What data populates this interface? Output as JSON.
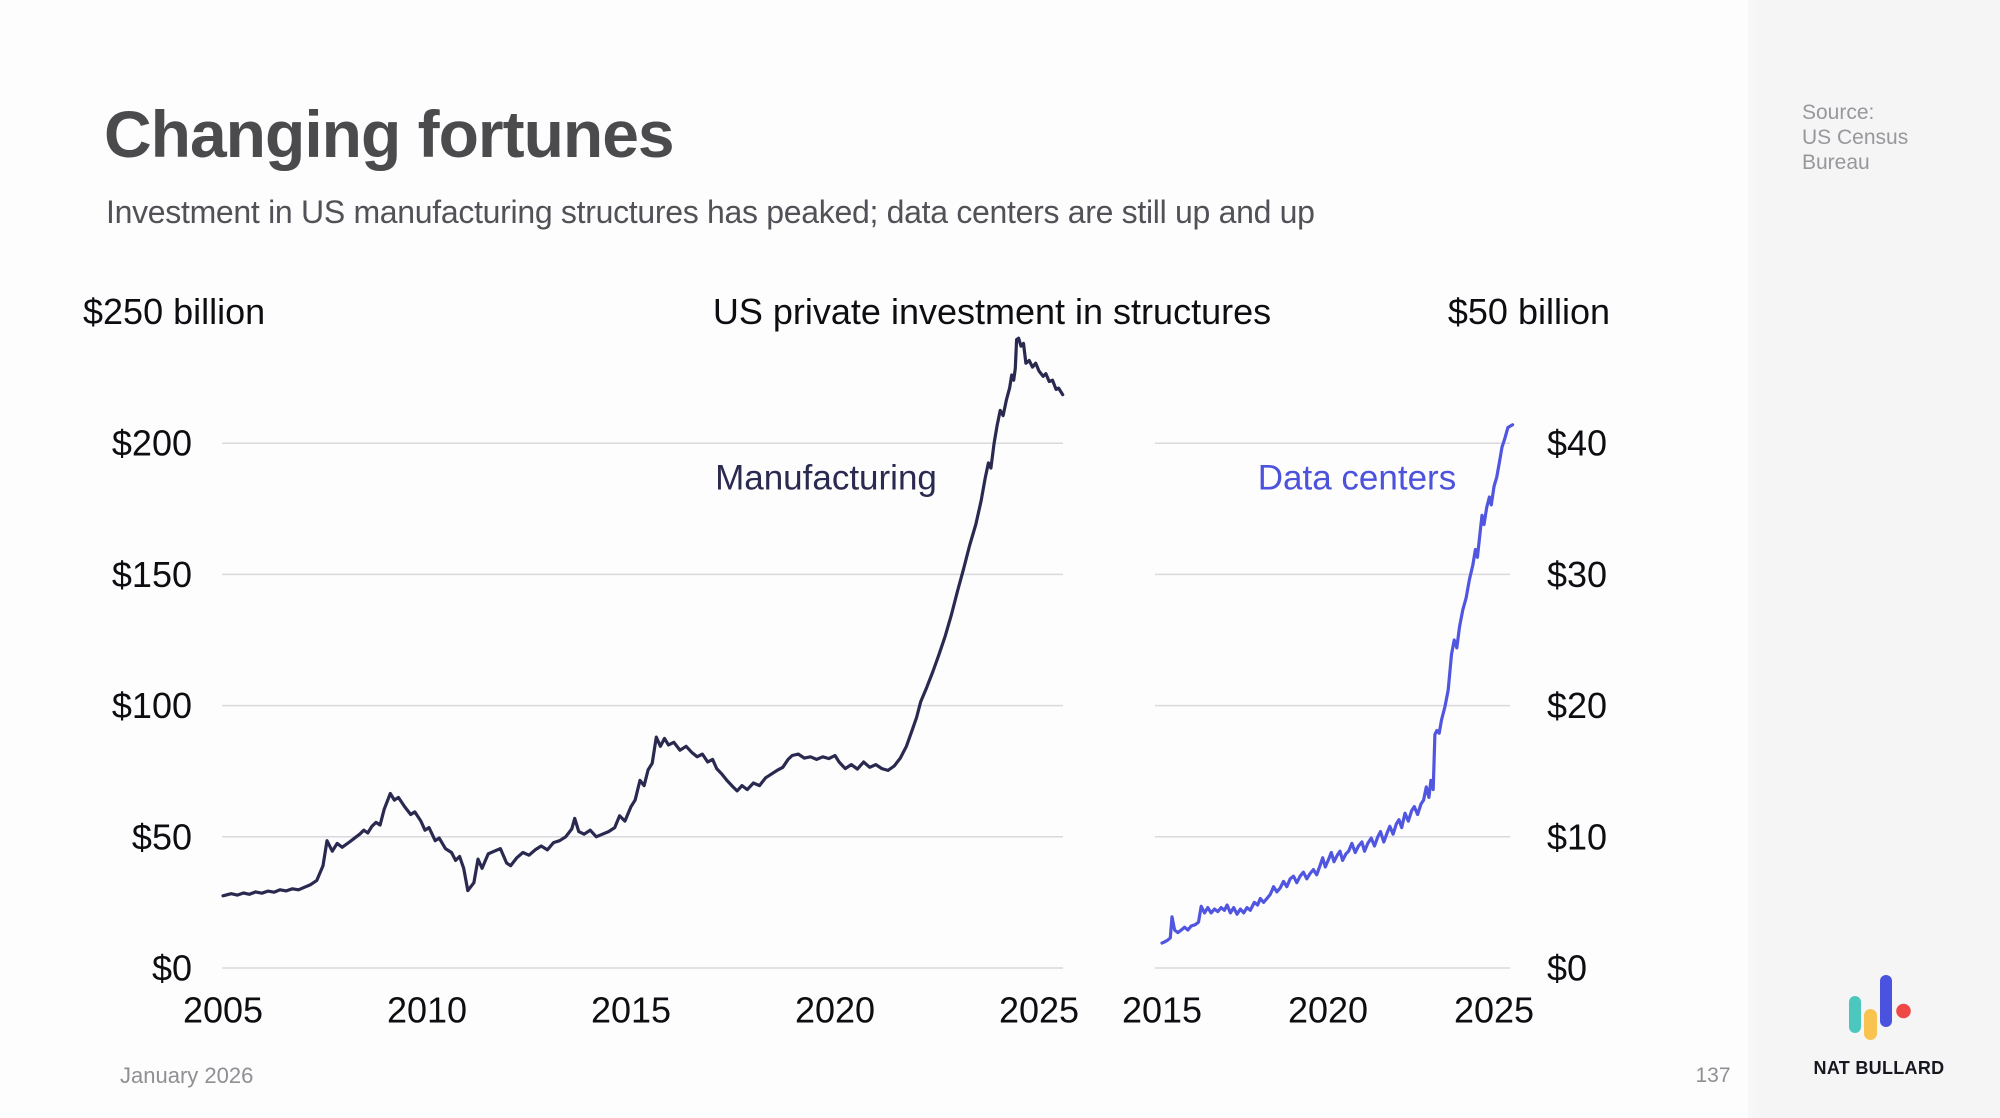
{
  "header": {
    "title": "Changing fortunes",
    "subtitle": "Investment in US manufacturing structures has peaked; data centers are still up and up"
  },
  "chart_header": {
    "title": "US private investment in structures"
  },
  "footer": {
    "date": "January 2026",
    "page_number": "137"
  },
  "sidebar": {
    "source_lines": [
      "Source:",
      "US Census",
      "Bureau"
    ],
    "brand": "NAT BULLARD",
    "logo": {
      "teal": "#4bc7be",
      "yellow": "#f9c350",
      "indigo": "#4a52e0",
      "red": "#ee4946"
    }
  },
  "colors": {
    "grid": "#d9d9de",
    "axis_text": "#0e0e12",
    "manufacturing_line": "#2a2950",
    "data_centers_line": "#5056e0"
  },
  "chart_data": [
    {
      "type": "line",
      "name": "manufacturing",
      "label": "Manufacturing",
      "label_color": "#2a2950",
      "color": "#2a2950",
      "axis_top_label": "$250 billion",
      "units": "billion USD",
      "xlim": [
        2005,
        2025.6
      ],
      "ylim": [
        0,
        250
      ],
      "grid": true,
      "x_ticks": [
        {
          "value": 2005,
          "label": "2005"
        },
        {
          "value": 2010,
          "label": "2010"
        },
        {
          "value": 2015,
          "label": "2015"
        },
        {
          "value": 2020,
          "label": "2020"
        },
        {
          "value": 2025,
          "label": "2025"
        }
      ],
      "y_gridlines": [
        {
          "value": 200,
          "label": "$200"
        },
        {
          "value": 150,
          "label": "$150"
        },
        {
          "value": 100,
          "label": "$100"
        },
        {
          "value": 50,
          "label": "$50"
        },
        {
          "value": 0,
          "label": "$0"
        }
      ],
      "points": [
        [
          2005.0,
          27.5
        ],
        [
          2005.2,
          28.3
        ],
        [
          2005.35,
          27.8
        ],
        [
          2005.5,
          28.6
        ],
        [
          2005.65,
          28.1
        ],
        [
          2005.8,
          29.0
        ],
        [
          2005.95,
          28.5
        ],
        [
          2006.1,
          29.3
        ],
        [
          2006.25,
          28.9
        ],
        [
          2006.4,
          29.8
        ],
        [
          2006.55,
          29.4
        ],
        [
          2006.7,
          30.2
        ],
        [
          2006.85,
          29.8
        ],
        [
          2007.0,
          30.8
        ],
        [
          2007.15,
          31.8
        ],
        [
          2007.3,
          33.4
        ],
        [
          2007.45,
          39.0
        ],
        [
          2007.55,
          48.5
        ],
        [
          2007.68,
          44.5
        ],
        [
          2007.8,
          47.5
        ],
        [
          2007.92,
          46.0
        ],
        [
          2008.1,
          48.0
        ],
        [
          2008.25,
          49.8
        ],
        [
          2008.35,
          51.0
        ],
        [
          2008.45,
          52.5
        ],
        [
          2008.55,
          51.5
        ],
        [
          2008.65,
          54.0
        ],
        [
          2008.75,
          55.5
        ],
        [
          2008.85,
          54.5
        ],
        [
          2008.95,
          60.5
        ],
        [
          2009.1,
          66.5
        ],
        [
          2009.2,
          64.0
        ],
        [
          2009.3,
          65.0
        ],
        [
          2009.45,
          61.5
        ],
        [
          2009.6,
          58.5
        ],
        [
          2009.7,
          59.5
        ],
        [
          2009.85,
          56.0
        ],
        [
          2009.95,
          52.5
        ],
        [
          2010.05,
          53.5
        ],
        [
          2010.2,
          48.5
        ],
        [
          2010.3,
          49.5
        ],
        [
          2010.45,
          45.5
        ],
        [
          2010.6,
          44.0
        ],
        [
          2010.7,
          41.0
        ],
        [
          2010.8,
          42.5
        ],
        [
          2010.9,
          38.0
        ],
        [
          2011.0,
          29.5
        ],
        [
          2011.15,
          32.5
        ],
        [
          2011.25,
          41.5
        ],
        [
          2011.35,
          38.0
        ],
        [
          2011.5,
          43.5
        ],
        [
          2011.65,
          44.5
        ],
        [
          2011.8,
          45.5
        ],
        [
          2011.95,
          40.0
        ],
        [
          2012.05,
          39.0
        ],
        [
          2012.2,
          42.0
        ],
        [
          2012.35,
          44.0
        ],
        [
          2012.5,
          43.0
        ],
        [
          2012.65,
          45.0
        ],
        [
          2012.8,
          46.5
        ],
        [
          2012.95,
          45.0
        ],
        [
          2013.1,
          47.8
        ],
        [
          2013.25,
          48.5
        ],
        [
          2013.4,
          50.0
        ],
        [
          2013.55,
          53.0
        ],
        [
          2013.62,
          57.0
        ],
        [
          2013.72,
          52.0
        ],
        [
          2013.85,
          51.0
        ],
        [
          2014.0,
          52.5
        ],
        [
          2014.15,
          50.0
        ],
        [
          2014.3,
          51.0
        ],
        [
          2014.45,
          52.0
        ],
        [
          2014.6,
          53.5
        ],
        [
          2014.72,
          58.0
        ],
        [
          2014.85,
          56.0
        ],
        [
          2015.0,
          61.5
        ],
        [
          2015.1,
          64.0
        ],
        [
          2015.22,
          71.5
        ],
        [
          2015.32,
          69.5
        ],
        [
          2015.42,
          75.5
        ],
        [
          2015.52,
          78.0
        ],
        [
          2015.62,
          88.0
        ],
        [
          2015.72,
          84.5
        ],
        [
          2015.82,
          87.5
        ],
        [
          2015.92,
          85.0
        ],
        [
          2016.05,
          86.0
        ],
        [
          2016.2,
          83.0
        ],
        [
          2016.35,
          84.5
        ],
        [
          2016.5,
          82.0
        ],
        [
          2016.62,
          80.5
        ],
        [
          2016.75,
          81.5
        ],
        [
          2016.88,
          78.5
        ],
        [
          2017.0,
          79.5
        ],
        [
          2017.1,
          76.0
        ],
        [
          2017.22,
          74.0
        ],
        [
          2017.35,
          71.5
        ],
        [
          2017.5,
          69.0
        ],
        [
          2017.6,
          67.5
        ],
        [
          2017.72,
          69.5
        ],
        [
          2017.85,
          68.0
        ],
        [
          2018.0,
          70.5
        ],
        [
          2018.15,
          69.5
        ],
        [
          2018.3,
          72.5
        ],
        [
          2018.45,
          74.0
        ],
        [
          2018.6,
          75.5
        ],
        [
          2018.72,
          76.5
        ],
        [
          2018.85,
          79.5
        ],
        [
          2018.95,
          81.0
        ],
        [
          2019.1,
          81.5
        ],
        [
          2019.25,
          80.0
        ],
        [
          2019.4,
          80.5
        ],
        [
          2019.55,
          79.5
        ],
        [
          2019.7,
          80.5
        ],
        [
          2019.85,
          79.8
        ],
        [
          2020.0,
          81.0
        ],
        [
          2020.1,
          78.5
        ],
        [
          2020.25,
          76.0
        ],
        [
          2020.4,
          77.5
        ],
        [
          2020.55,
          75.8
        ],
        [
          2020.7,
          78.5
        ],
        [
          2020.85,
          76.5
        ],
        [
          2021.0,
          77.5
        ],
        [
          2021.15,
          76.0
        ],
        [
          2021.3,
          75.3
        ],
        [
          2021.45,
          77.0
        ],
        [
          2021.6,
          80.0
        ],
        [
          2021.75,
          84.5
        ],
        [
          2021.9,
          91.0
        ],
        [
          2022.0,
          95.5
        ],
        [
          2022.1,
          101.5
        ],
        [
          2022.25,
          107.0
        ],
        [
          2022.4,
          113.0
        ],
        [
          2022.55,
          119.5
        ],
        [
          2022.7,
          126.5
        ],
        [
          2022.85,
          134.5
        ],
        [
          2023.0,
          143.5
        ],
        [
          2023.15,
          152.0
        ],
        [
          2023.3,
          161.0
        ],
        [
          2023.45,
          169.0
        ],
        [
          2023.58,
          178.0
        ],
        [
          2023.68,
          186.5
        ],
        [
          2023.76,
          192.5
        ],
        [
          2023.82,
          190.5
        ],
        [
          2023.9,
          200.0
        ],
        [
          2023.97,
          206.5
        ],
        [
          2024.05,
          212.5
        ],
        [
          2024.12,
          210.5
        ],
        [
          2024.2,
          216.5
        ],
        [
          2024.28,
          221.0
        ],
        [
          2024.33,
          226.0
        ],
        [
          2024.38,
          224.0
        ],
        [
          2024.42,
          228.5
        ],
        [
          2024.45,
          239.5
        ],
        [
          2024.5,
          240.0
        ],
        [
          2024.56,
          237.0
        ],
        [
          2024.62,
          238.0
        ],
        [
          2024.68,
          230.5
        ],
        [
          2024.76,
          231.5
        ],
        [
          2024.84,
          229.0
        ],
        [
          2024.92,
          230.5
        ],
        [
          2025.0,
          227.5
        ],
        [
          2025.1,
          225.5
        ],
        [
          2025.17,
          226.5
        ],
        [
          2025.25,
          223.5
        ],
        [
          2025.33,
          224.0
        ],
        [
          2025.42,
          220.5
        ],
        [
          2025.48,
          221.0
        ],
        [
          2025.58,
          218.5
        ]
      ]
    },
    {
      "type": "line",
      "name": "data-centers",
      "label": "Data centers",
      "label_color": "#4c52dc",
      "color": "#5056e0",
      "axis_top_label": "$50 billion",
      "units": "billion USD",
      "xlim": [
        2015,
        2025.6
      ],
      "ylim": [
        0,
        50
      ],
      "grid": true,
      "x_ticks": [
        {
          "value": 2015,
          "label": "2015"
        },
        {
          "value": 2020,
          "label": "2020"
        },
        {
          "value": 2025,
          "label": "2025"
        }
      ],
      "y_gridlines": [
        {
          "value": 40,
          "label": "$40"
        },
        {
          "value": 30,
          "label": "$30"
        },
        {
          "value": 20,
          "label": "$20"
        },
        {
          "value": 10,
          "label": "$10"
        },
        {
          "value": 0,
          "label": "$0"
        }
      ],
      "points": [
        [
          2015.0,
          1.9
        ],
        [
          2015.08,
          2.0
        ],
        [
          2015.16,
          2.1
        ],
        [
          2015.25,
          2.3
        ],
        [
          2015.3,
          3.9
        ],
        [
          2015.38,
          2.9
        ],
        [
          2015.48,
          2.7
        ],
        [
          2015.58,
          2.9
        ],
        [
          2015.68,
          3.1
        ],
        [
          2015.78,
          2.9
        ],
        [
          2015.88,
          3.2
        ],
        [
          2016.0,
          3.3
        ],
        [
          2016.1,
          3.5
        ],
        [
          2016.18,
          4.7
        ],
        [
          2016.28,
          4.2
        ],
        [
          2016.38,
          4.6
        ],
        [
          2016.48,
          4.2
        ],
        [
          2016.58,
          4.5
        ],
        [
          2016.68,
          4.3
        ],
        [
          2016.78,
          4.6
        ],
        [
          2016.88,
          4.4
        ],
        [
          2016.96,
          4.8
        ],
        [
          2017.06,
          4.2
        ],
        [
          2017.16,
          4.6
        ],
        [
          2017.26,
          4.1
        ],
        [
          2017.36,
          4.5
        ],
        [
          2017.46,
          4.2
        ],
        [
          2017.56,
          4.6
        ],
        [
          2017.66,
          4.4
        ],
        [
          2017.78,
          5.0
        ],
        [
          2017.88,
          4.8
        ],
        [
          2017.96,
          5.3
        ],
        [
          2018.06,
          5.0
        ],
        [
          2018.16,
          5.3
        ],
        [
          2018.26,
          5.6
        ],
        [
          2018.36,
          6.2
        ],
        [
          2018.46,
          5.8
        ],
        [
          2018.56,
          6.1
        ],
        [
          2018.66,
          6.6
        ],
        [
          2018.76,
          6.2
        ],
        [
          2018.86,
          6.8
        ],
        [
          2018.96,
          7.0
        ],
        [
          2019.06,
          6.5
        ],
        [
          2019.16,
          7.0
        ],
        [
          2019.26,
          7.3
        ],
        [
          2019.36,
          6.8
        ],
        [
          2019.46,
          7.2
        ],
        [
          2019.56,
          7.5
        ],
        [
          2019.66,
          7.1
        ],
        [
          2019.76,
          7.8
        ],
        [
          2019.84,
          8.4
        ],
        [
          2019.92,
          7.7
        ],
        [
          2020.02,
          8.3
        ],
        [
          2020.1,
          8.8
        ],
        [
          2020.18,
          8.1
        ],
        [
          2020.28,
          8.6
        ],
        [
          2020.36,
          8.9
        ],
        [
          2020.44,
          8.2
        ],
        [
          2020.54,
          8.7
        ],
        [
          2020.62,
          8.9
        ],
        [
          2020.72,
          9.5
        ],
        [
          2020.82,
          8.8
        ],
        [
          2020.92,
          9.3
        ],
        [
          2021.02,
          9.6
        ],
        [
          2021.1,
          8.9
        ],
        [
          2021.2,
          9.5
        ],
        [
          2021.3,
          9.9
        ],
        [
          2021.4,
          9.3
        ],
        [
          2021.5,
          10.0
        ],
        [
          2021.58,
          10.4
        ],
        [
          2021.68,
          9.6
        ],
        [
          2021.78,
          10.3
        ],
        [
          2021.86,
          10.8
        ],
        [
          2021.96,
          10.2
        ],
        [
          2022.06,
          11.0
        ],
        [
          2022.14,
          11.3
        ],
        [
          2022.22,
          10.7
        ],
        [
          2022.32,
          11.8
        ],
        [
          2022.42,
          11.2
        ],
        [
          2022.52,
          12.0
        ],
        [
          2022.6,
          12.3
        ],
        [
          2022.7,
          11.7
        ],
        [
          2022.8,
          12.5
        ],
        [
          2022.88,
          12.8
        ],
        [
          2022.96,
          13.8
        ],
        [
          2023.04,
          13.0
        ],
        [
          2023.1,
          14.3
        ],
        [
          2023.17,
          13.6
        ],
        [
          2023.22,
          17.8
        ],
        [
          2023.28,
          18.1
        ],
        [
          2023.35,
          17.9
        ],
        [
          2023.42,
          18.9
        ],
        [
          2023.52,
          19.9
        ],
        [
          2023.62,
          21.2
        ],
        [
          2023.72,
          23.9
        ],
        [
          2023.8,
          25.0
        ],
        [
          2023.88,
          24.4
        ],
        [
          2023.96,
          26.0
        ],
        [
          2024.06,
          27.3
        ],
        [
          2024.16,
          28.2
        ],
        [
          2024.26,
          29.6
        ],
        [
          2024.36,
          30.7
        ],
        [
          2024.44,
          31.9
        ],
        [
          2024.5,
          31.3
        ],
        [
          2024.58,
          33.2
        ],
        [
          2024.64,
          34.5
        ],
        [
          2024.7,
          33.8
        ],
        [
          2024.78,
          35.1
        ],
        [
          2024.86,
          35.9
        ],
        [
          2024.92,
          35.3
        ],
        [
          2025.0,
          36.7
        ],
        [
          2025.08,
          37.4
        ],
        [
          2025.16,
          38.5
        ],
        [
          2025.24,
          39.7
        ],
        [
          2025.32,
          40.3
        ],
        [
          2025.42,
          41.2
        ],
        [
          2025.56,
          41.4
        ]
      ]
    }
  ]
}
